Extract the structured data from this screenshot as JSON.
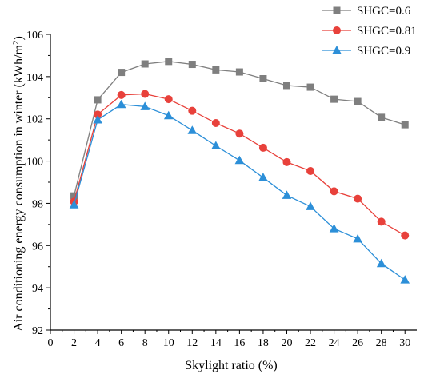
{
  "chart_data": {
    "type": "line",
    "title": "",
    "xlabel": "Skylight ratio (%)",
    "ylabel_main": "Air conditioning energy consumption in winter (kWh/m",
    "ylabel_sup": "2",
    "ylabel_close": ")",
    "xlim": [
      0,
      31
    ],
    "ylim": [
      92,
      106
    ],
    "xticks": [
      "0",
      "2",
      "4",
      "6",
      "8",
      "10",
      "12",
      "14",
      "16",
      "18",
      "20",
      "22",
      "24",
      "26",
      "28",
      "30"
    ],
    "yticks": [
      "92",
      "94",
      "96",
      "98",
      "100",
      "102",
      "104",
      "106"
    ],
    "legend_position": "top-right",
    "x": [
      2,
      4,
      6,
      8,
      10,
      12,
      14,
      16,
      18,
      20,
      22,
      24,
      26,
      28,
      30
    ],
    "series": [
      {
        "name": "SHGC=0.6",
        "color": "#7f7f7f",
        "marker": "square",
        "values": [
          98.35,
          102.9,
          104.2,
          104.6,
          104.72,
          104.58,
          104.32,
          104.22,
          103.9,
          103.58,
          103.5,
          102.93,
          102.82,
          102.07,
          101.72
        ]
      },
      {
        "name": "SHGC=0.81",
        "color": "#e8413b",
        "marker": "circle",
        "values": [
          98.08,
          102.2,
          103.13,
          103.18,
          102.93,
          102.38,
          101.8,
          101.3,
          100.63,
          99.95,
          99.53,
          98.57,
          98.22,
          97.13,
          96.48
        ]
      },
      {
        "name": "SHGC=0.9",
        "color": "#2c8fd8",
        "marker": "triangle",
        "values": [
          97.93,
          101.95,
          102.68,
          102.58,
          102.15,
          101.45,
          100.72,
          100.03,
          99.22,
          98.38,
          97.85,
          96.8,
          96.32,
          95.15,
          94.38
        ]
      }
    ]
  }
}
